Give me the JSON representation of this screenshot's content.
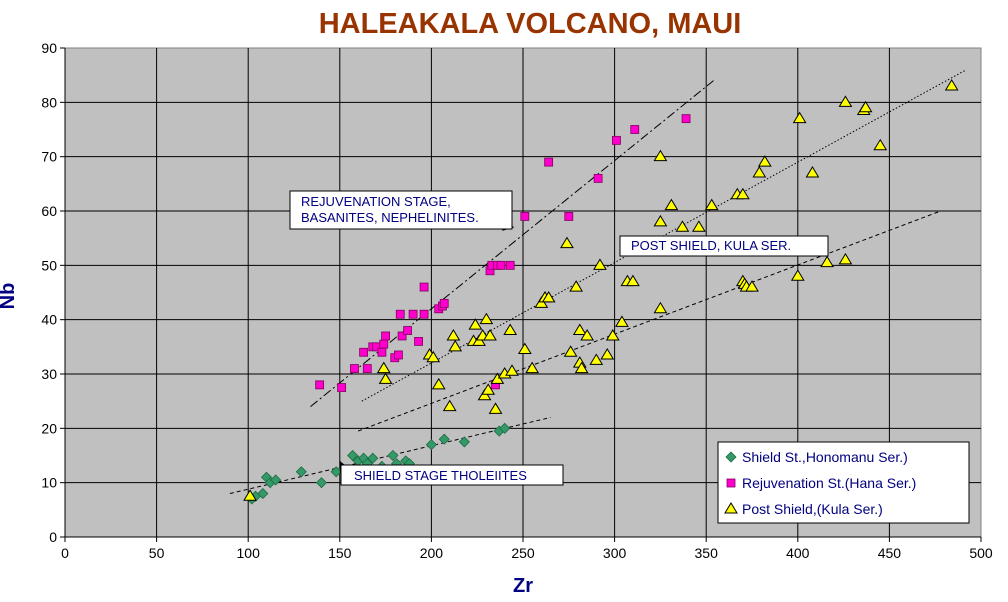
{
  "chart_data": {
    "type": "scatter",
    "title": "HALEAKALA VOLCANO, MAUI",
    "xlabel": "Zr",
    "ylabel": "Nb",
    "xlim": [
      0,
      500
    ],
    "ylim": [
      0,
      90
    ],
    "xticks": [
      0,
      50,
      100,
      150,
      200,
      250,
      300,
      350,
      400,
      450,
      500
    ],
    "yticks": [
      0,
      10,
      20,
      30,
      40,
      50,
      60,
      70,
      80,
      90
    ],
    "grid": true,
    "legend_position": "bottom-right",
    "colors": {
      "plot_background": "#c0c0c0",
      "title": "#993300",
      "axis_title": "#000080",
      "annotation_text": "#000080"
    },
    "series": [
      {
        "name": "Shield St.,Honomanu Ser.)",
        "marker": "diamond",
        "color": "#339966",
        "points": [
          [
            102,
            7
          ],
          [
            104,
            7.5
          ],
          [
            108,
            8
          ],
          [
            110,
            11
          ],
          [
            112,
            10
          ],
          [
            115,
            10.5
          ],
          [
            129,
            12
          ],
          [
            140,
            10
          ],
          [
            148,
            12
          ],
          [
            152,
            12.5
          ],
          [
            157,
            15
          ],
          [
            160,
            14
          ],
          [
            163,
            14.5
          ],
          [
            165,
            13.5
          ],
          [
            168,
            14.5
          ],
          [
            173,
            13
          ],
          [
            179,
            15
          ],
          [
            181,
            13.5
          ],
          [
            186,
            14
          ],
          [
            188,
            13.5
          ],
          [
            200,
            17
          ],
          [
            207,
            18
          ],
          [
            218,
            17.5
          ],
          [
            237,
            19.5
          ],
          [
            240,
            20
          ]
        ]
      },
      {
        "name": "Rejuvenation St.(Hana Ser.)",
        "marker": "square",
        "color": "#ff00cc",
        "points": [
          [
            139,
            28
          ],
          [
            151,
            27.5
          ],
          [
            158,
            31
          ],
          [
            163,
            34
          ],
          [
            165,
            31
          ],
          [
            168,
            35
          ],
          [
            170,
            35
          ],
          [
            173,
            34
          ],
          [
            174,
            35.5
          ],
          [
            175,
            37
          ],
          [
            180,
            33
          ],
          [
            182,
            33.5
          ],
          [
            183,
            41
          ],
          [
            184,
            37
          ],
          [
            187,
            38
          ],
          [
            190,
            41
          ],
          [
            193,
            36
          ],
          [
            196,
            41
          ],
          [
            196,
            46
          ],
          [
            204,
            42
          ],
          [
            206,
            42.5
          ],
          [
            207,
            43
          ],
          [
            232,
            49
          ],
          [
            233,
            50
          ],
          [
            236,
            50
          ],
          [
            238,
            50
          ],
          [
            235,
            28
          ],
          [
            243,
            50
          ],
          [
            251,
            59
          ],
          [
            264,
            69
          ],
          [
            275,
            59
          ],
          [
            291,
            66
          ],
          [
            301,
            73
          ],
          [
            311,
            75
          ],
          [
            339,
            77
          ]
        ]
      },
      {
        "name": "Post Shield,(Kula Ser.)",
        "marker": "triangle",
        "color": "#ffff00",
        "points": [
          [
            101,
            7.5
          ],
          [
            174,
            31
          ],
          [
            175,
            29
          ],
          [
            199,
            33.5
          ],
          [
            201,
            33
          ],
          [
            204,
            28
          ],
          [
            210,
            24
          ],
          [
            212,
            37
          ],
          [
            213,
            35
          ],
          [
            223,
            36
          ],
          [
            224,
            39
          ],
          [
            226,
            36
          ],
          [
            228,
            37
          ],
          [
            229,
            26
          ],
          [
            230,
            40
          ],
          [
            231,
            27
          ],
          [
            232,
            37
          ],
          [
            235,
            23.5
          ],
          [
            236,
            29
          ],
          [
            240,
            30
          ],
          [
            243,
            38
          ],
          [
            244,
            30.5
          ],
          [
            251,
            34.5
          ],
          [
            255,
            31
          ],
          [
            260,
            43
          ],
          [
            262,
            44
          ],
          [
            264,
            44
          ],
          [
            274,
            54
          ],
          [
            276,
            34
          ],
          [
            279,
            46
          ],
          [
            281,
            32
          ],
          [
            281,
            38
          ],
          [
            282,
            31
          ],
          [
            285,
            37
          ],
          [
            290,
            32.5
          ],
          [
            292,
            50
          ],
          [
            296,
            33.5
          ],
          [
            299,
            37
          ],
          [
            304,
            39.5
          ],
          [
            307,
            47
          ],
          [
            310,
            47
          ],
          [
            325,
            42
          ],
          [
            325,
            58
          ],
          [
            325,
            70
          ],
          [
            331,
            61
          ],
          [
            337,
            57
          ],
          [
            346,
            57
          ],
          [
            353,
            61
          ],
          [
            367,
            63
          ],
          [
            370,
            63
          ],
          [
            370,
            47
          ],
          [
            371,
            46.5
          ],
          [
            372,
            46
          ],
          [
            375,
            46
          ],
          [
            379,
            67
          ],
          [
            382,
            69
          ],
          [
            400,
            48
          ],
          [
            401,
            77
          ],
          [
            408,
            67
          ],
          [
            416,
            50.5
          ],
          [
            426,
            51
          ],
          [
            426,
            80
          ],
          [
            436,
            78.5
          ],
          [
            437,
            79
          ],
          [
            445,
            72
          ],
          [
            484,
            83
          ]
        ]
      }
    ],
    "trend_lines": [
      {
        "style": "dash-dot",
        "from": [
          134,
          24
        ],
        "to": [
          354,
          84
        ]
      },
      {
        "style": "dotted",
        "from": [
          162,
          25
        ],
        "to": [
          492,
          86
        ]
      },
      {
        "style": "dashed",
        "from": [
          160,
          19.5
        ],
        "to": [
          478,
          60
        ]
      },
      {
        "style": "dashed",
        "from": [
          90,
          8
        ],
        "to": [
          265,
          22
        ]
      }
    ],
    "annotations": [
      {
        "lines": [
          "REJUVENATION STAGE,",
          "BASANITES, NEPHELINITES."
        ],
        "arrow_to": [
          245,
          57
        ]
      },
      {
        "lines": [
          "POST SHIELD, KULA SER."
        ]
      },
      {
        "lines": [
          "SHIELD STAGE THOLEIITES"
        ],
        "arrow_to": [
          150,
          14
        ]
      }
    ]
  }
}
